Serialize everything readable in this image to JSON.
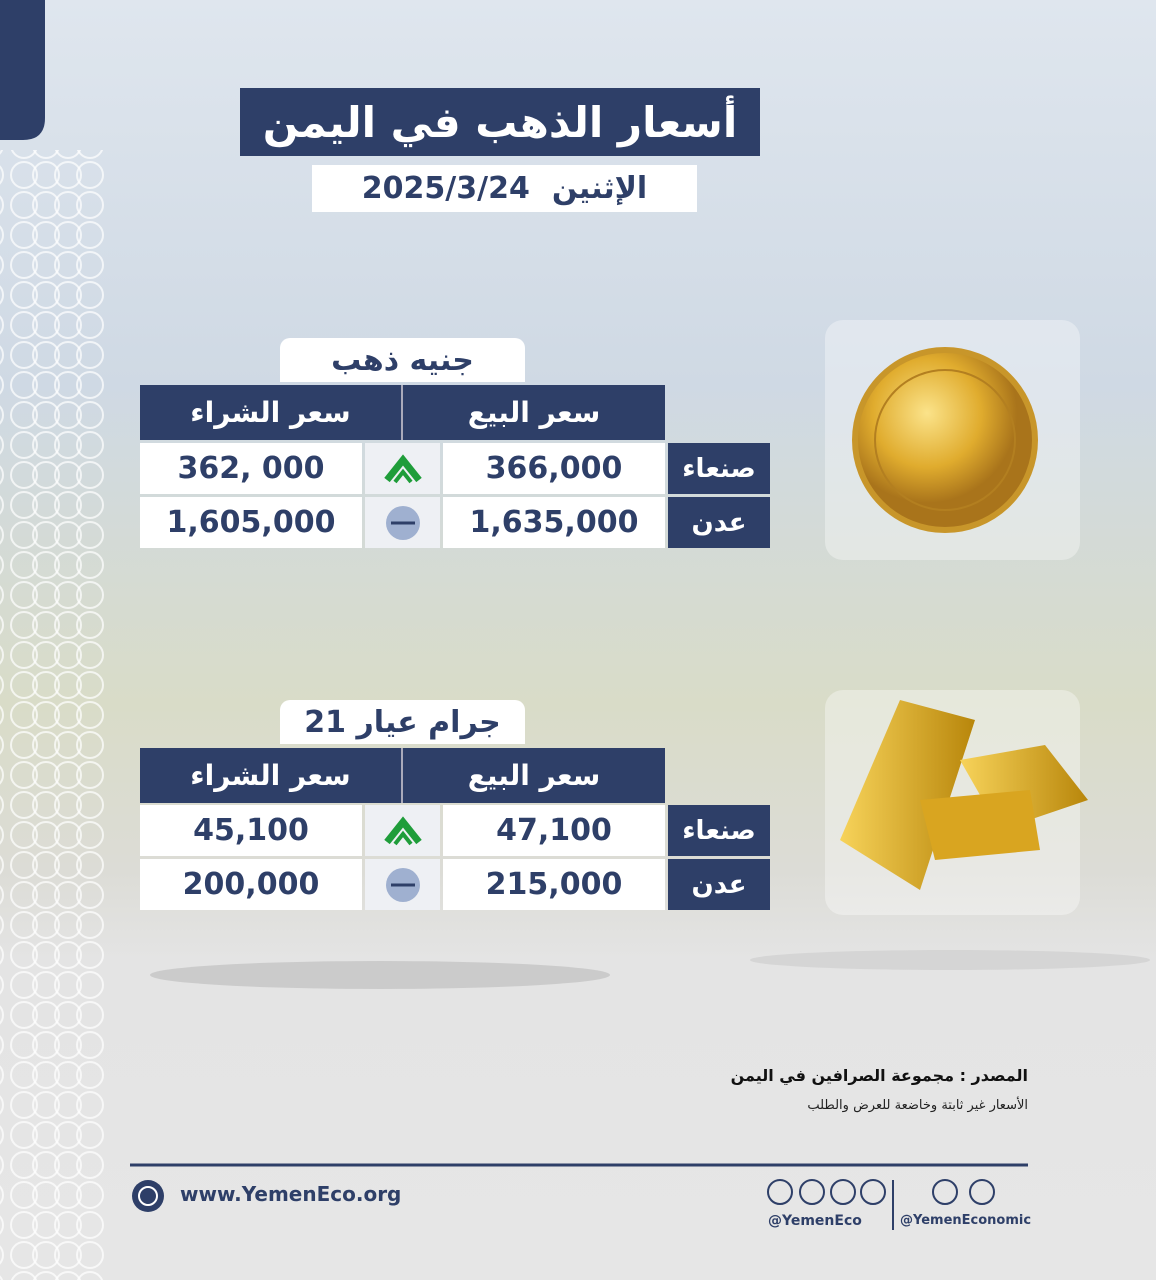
{
  "header": {
    "title": "أسعار الذهب في اليمن",
    "day": "الإثنين",
    "date": "2025/3/24"
  },
  "sections": [
    {
      "title": "جنيه ذهب",
      "sell_header": "سعر البيع",
      "buy_header": "سعر الشراء",
      "rows": [
        {
          "city": "صنعاء",
          "sell": "366,000",
          "buy": "362, 000"
        },
        {
          "city": "عدن",
          "sell": "1,635,000",
          "buy": "1,605,000"
        }
      ]
    },
    {
      "title": "جرام عيار 21",
      "sell_header": "سعر البيع",
      "buy_header": "سعر الشراء",
      "rows": [
        {
          "city": "صنعاء",
          "sell": "47,100",
          "buy": "45,100"
        },
        {
          "city": "عدن",
          "sell": "215,000",
          "buy": "200,000"
        }
      ]
    }
  ],
  "source": {
    "text": "المصدر : مجموعة الصرافين في اليمن",
    "note": "الأسعار غير ثابتة وخاضعة للعرض والطلب"
  },
  "footer": {
    "website": "www.YemenEco.org",
    "handle_1": "@YemenEco",
    "handle_2": "@YemenEconomic"
  }
}
